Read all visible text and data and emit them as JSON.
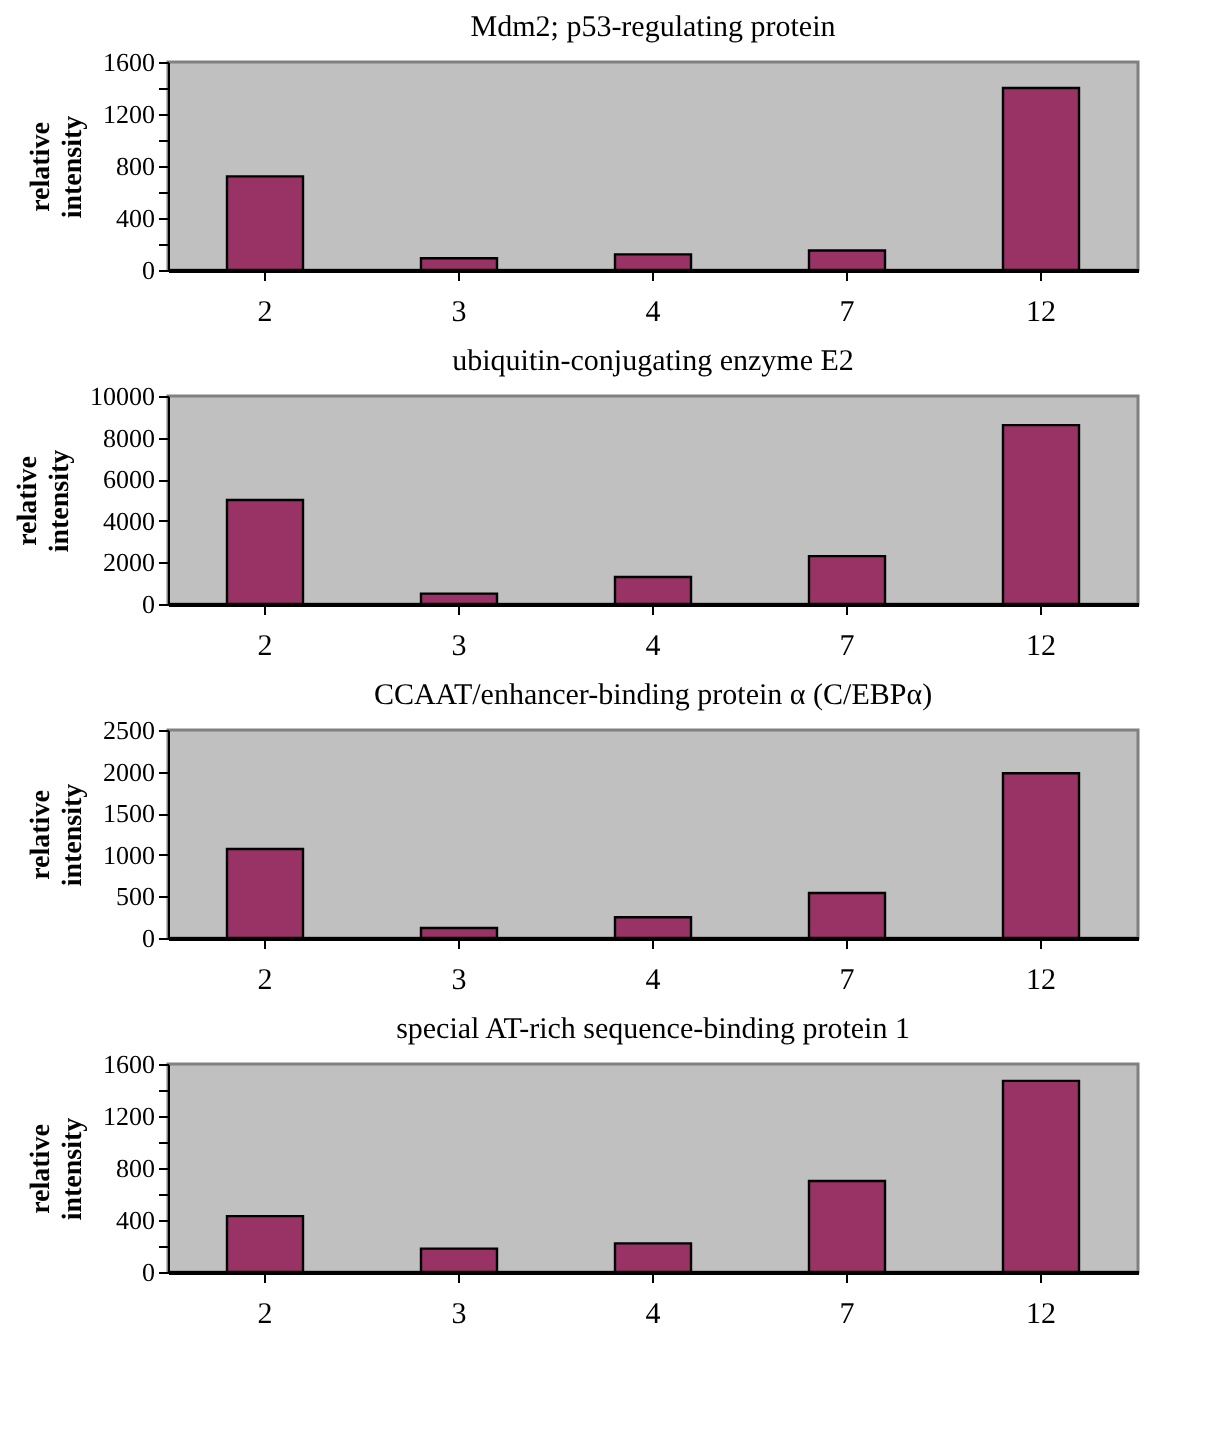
{
  "chart_data": [
    {
      "type": "bar",
      "title": "Mdm2; p53-regulating protein",
      "ylabel": "relative intensity",
      "categories": [
        "2",
        "3",
        "4",
        "7",
        "12"
      ],
      "series": [
        {
          "color": "#993366",
          "values": [
            720,
            90,
            120,
            150,
            1400
          ]
        }
      ],
      "ylim": [
        0,
        1600
      ],
      "yticks": [
        0,
        {
          "value": 200,
          "label": null
        },
        400,
        {
          "value": 600,
          "label": null
        },
        800,
        {
          "value": 1000,
          "label": null
        },
        1200,
        {
          "value": 1400,
          "label": null
        },
        1600
      ]
    },
    {
      "type": "bar",
      "title": "ubiquitin-conjugating enzyme E2",
      "ylabel": "relative intensity",
      "categories": [
        "2",
        "3",
        "4",
        "7",
        "12"
      ],
      "series": [
        {
          "color": "#993366",
          "values": [
            5000,
            500,
            1300,
            2300,
            8600
          ]
        }
      ],
      "ylim": [
        0,
        10000
      ],
      "yticks": [
        0,
        2000,
        4000,
        6000,
        8000,
        10000
      ]
    },
    {
      "type": "bar",
      "title": "CCAAT/enhancer-binding protein α (C/EBPα)",
      "ylabel": "relative intensity",
      "categories": [
        "2",
        "3",
        "4",
        "7",
        "12"
      ],
      "series": [
        {
          "color": "#993366",
          "values": [
            1070,
            120,
            250,
            540,
            1980
          ]
        }
      ],
      "ylim": [
        0,
        2500
      ],
      "yticks": [
        0,
        500,
        1000,
        1500,
        2000,
        2500
      ]
    },
    {
      "type": "bar",
      "title": "special AT-rich sequence-binding protein 1",
      "ylabel": "relative intensity",
      "categories": [
        "2",
        "3",
        "4",
        "7",
        "12"
      ],
      "series": [
        {
          "color": "#993366",
          "values": [
            430,
            180,
            220,
            700,
            1470
          ]
        }
      ],
      "ylim": [
        0,
        1600
      ],
      "yticks": [
        0,
        {
          "value": 200,
          "label": null
        },
        400,
        {
          "value": 600,
          "label": null
        },
        800,
        {
          "value": 1000,
          "label": null
        },
        1200,
        {
          "value": 1400,
          "label": null
        },
        1600
      ]
    }
  ]
}
